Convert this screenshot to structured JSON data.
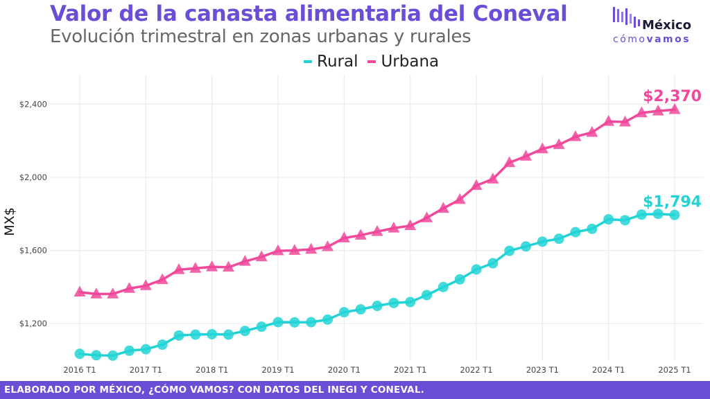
{
  "header": {
    "title": "Valor de la canasta alimentaria del Coneval",
    "subtitle": "Evolución trimestral en zonas urbanas y rurales"
  },
  "logo": {
    "line1": "México",
    "line2_a": "cómo",
    "line2_b": "vamos"
  },
  "footer": {
    "text": "ELABORADO POR MÉXICO, ¿CÓMO VAMOS? CON DATOS DEL INEGI Y CONEVAL."
  },
  "chart_data": {
    "type": "line",
    "title": "Valor de la canasta alimentaria del Coneval",
    "subtitle": "Evolución trimestral en zonas urbanas y rurales",
    "ylabel": "MX$",
    "xlabel": "",
    "ylim": [
      1000,
      2560
    ],
    "y_ticks": [
      1200,
      1600,
      2000,
      2400
    ],
    "y_tick_labels": [
      "$1,200",
      "$1,600",
      "$2,000",
      "$2,400"
    ],
    "x_tick_labels": [
      "2016 T1",
      "2017 T1",
      "2018 T1",
      "2019 T1",
      "2020 T1",
      "2021 T1",
      "2022 T1",
      "2023 T1",
      "2024 T1",
      "2025 T1"
    ],
    "grid": true,
    "legend_position": "top-center",
    "categories": [
      "2016 T1",
      "2016 T2",
      "2016 T3",
      "2016 T4",
      "2017 T1",
      "2017 T2",
      "2017 T3",
      "2017 T4",
      "2018 T1",
      "2018 T2",
      "2018 T3",
      "2018 T4",
      "2019 T1",
      "2019 T2",
      "2019 T3",
      "2019 T4",
      "2020 T1",
      "2020 T2",
      "2020 T3",
      "2020 T4",
      "2021 T1",
      "2021 T2",
      "2021 T3",
      "2021 T4",
      "2022 T1",
      "2022 T2",
      "2022 T3",
      "2022 T4",
      "2023 T1",
      "2023 T2",
      "2023 T3",
      "2023 T4",
      "2024 T1",
      "2024 T2",
      "2024 T3",
      "2024 T4",
      "2025 T1"
    ],
    "series": [
      {
        "name": "Rural",
        "color": "#22d3d6",
        "marker": "circle",
        "values": [
          1035,
          1027,
          1025,
          1052,
          1060,
          1085,
          1135,
          1140,
          1142,
          1140,
          1160,
          1183,
          1208,
          1207,
          1208,
          1222,
          1262,
          1278,
          1297,
          1313,
          1318,
          1356,
          1400,
          1442,
          1496,
          1530,
          1598,
          1622,
          1648,
          1664,
          1700,
          1718,
          1770,
          1765,
          1796,
          1800,
          1794
        ],
        "end_label": "$1,794"
      },
      {
        "name": "Urbana",
        "color": "#f0489a",
        "marker": "triangle",
        "values": [
          1372,
          1362,
          1362,
          1392,
          1407,
          1440,
          1495,
          1502,
          1510,
          1508,
          1540,
          1565,
          1598,
          1600,
          1606,
          1620,
          1668,
          1683,
          1703,
          1722,
          1735,
          1778,
          1830,
          1878,
          1955,
          1990,
          2080,
          2115,
          2155,
          2178,
          2222,
          2245,
          2305,
          2302,
          2352,
          2362,
          2370
        ],
        "end_label": "$2,370"
      }
    ]
  }
}
